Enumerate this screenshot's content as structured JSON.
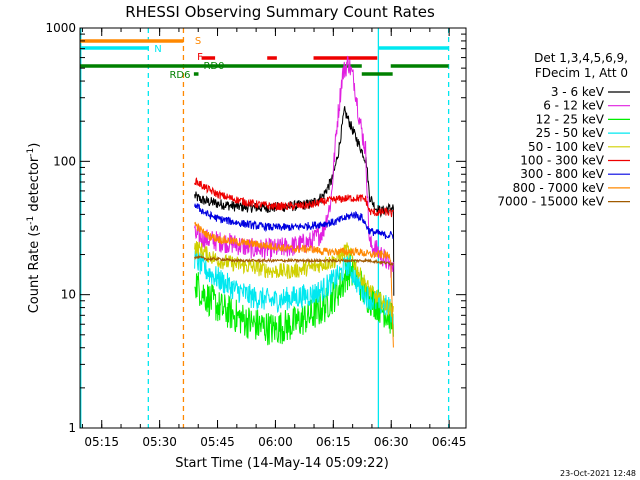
{
  "chart_data": {
    "type": "line",
    "title": "RHESSI Observing Summary Count Rates",
    "xlabel": "Start Time (14-May-14 05:09:22)",
    "ylabel": "Count Rate (s⁻¹ detector⁻¹)",
    "ylabel_base": "Count Rate (s",
    "ylabel_exp1": "-1",
    "ylabel_mid": " detector",
    "ylabel_exp2": "-1",
    "ylabel_end": ")",
    "y_scale": "log",
    "ylim": [
      1,
      1000
    ],
    "xlim_minutes": [
      0,
      100
    ],
    "x_ticks": [
      {
        "label": "05:15",
        "minute": 5.63
      },
      {
        "label": "05:30",
        "minute": 20.63
      },
      {
        "label": "05:45",
        "minute": 35.63
      },
      {
        "label": "06:00",
        "minute": 50.63
      },
      {
        "label": "06:15",
        "minute": 65.63
      },
      {
        "label": "06:30",
        "minute": 80.63
      },
      {
        "label": "06:45",
        "minute": 95.63
      }
    ],
    "y_ticks": [
      {
        "label": "1",
        "value": 1
      },
      {
        "label": "10",
        "value": 10
      },
      {
        "label": "100",
        "value": 100
      },
      {
        "label": "1000",
        "value": 1000
      }
    ],
    "legend": {
      "placement": "right",
      "header1": "Det 1,3,4,5,6,9,",
      "header2": "FDecim 1, Att 0",
      "entries": [
        {
          "name": "3 - 6 keV",
          "color": "#000000"
        },
        {
          "name": "6 - 12 keV",
          "color": "#e020e0"
        },
        {
          "name": "12 - 25 keV",
          "color": "#00ee00"
        },
        {
          "name": "25 - 50 keV",
          "color": "#00e8f0"
        },
        {
          "name": "50 - 100 keV",
          "color": "#d0d000"
        },
        {
          "name": "100 - 300 keV",
          "color": "#ee0000"
        },
        {
          "name": "300 - 800 keV",
          "color": "#0000e0"
        },
        {
          "name": "800 - 7000 keV",
          "color": "#ff8800"
        },
        {
          "name": "7000 - 15000 keV",
          "color": "#a05a00"
        }
      ]
    },
    "series": [
      {
        "name": "3 - 6 keV",
        "color": "#000000",
        "minutes": [
          29.7,
          31,
          33,
          36,
          40,
          45,
          50,
          55,
          60,
          63,
          65.5,
          67,
          68.5,
          70,
          71.5,
          73,
          74.2,
          75,
          76.5,
          78,
          79.5,
          81.2,
          81.3
        ],
        "values": [
          55,
          52,
          50,
          48,
          46,
          45,
          45,
          46,
          48,
          55,
          75,
          120,
          240,
          190,
          150,
          120,
          100,
          55,
          45,
          42,
          44,
          45,
          10
        ]
      },
      {
        "name": "6 - 12 keV",
        "color": "#e020e0",
        "minutes": [
          29.7,
          31,
          33,
          36,
          40,
          45,
          50,
          55,
          60,
          63,
          65,
          66.5,
          68,
          69.5,
          71,
          72.5,
          74,
          75,
          76.5,
          78,
          80,
          81.2
        ],
        "values": [
          28,
          27,
          26,
          25,
          24,
          22,
          22,
          23,
          25,
          30,
          50,
          180,
          450,
          560,
          400,
          200,
          120,
          24,
          22,
          20,
          17,
          15
        ]
      },
      {
        "name": "12 - 25 keV",
        "color": "#00ee00",
        "minutes": [
          29.7,
          31,
          33,
          36,
          40,
          45,
          50,
          55,
          60,
          63,
          66,
          68,
          69,
          70,
          72,
          74,
          76,
          78,
          80,
          81.2
        ],
        "values": [
          13,
          11,
          9.5,
          8,
          7,
          6,
          5.5,
          6,
          7,
          8,
          10,
          12,
          14,
          16,
          13,
          10,
          9,
          8,
          7,
          6
        ]
      },
      {
        "name": "25 - 50 keV",
        "color": "#00e8f0",
        "minutes": [
          29.7,
          31,
          33,
          36,
          40,
          45,
          50,
          55,
          60,
          63,
          66,
          68,
          69,
          70,
          72,
          74,
          76,
          78,
          80,
          81.2
        ],
        "values": [
          19,
          17,
          15,
          13,
          11,
          9.5,
          9,
          9.5,
          10,
          11,
          13,
          15,
          17,
          16,
          12,
          10,
          9,
          8.5,
          8,
          7
        ]
      },
      {
        "name": "50 - 100 keV",
        "color": "#d0d000",
        "minutes": [
          29.7,
          31,
          33,
          36,
          40,
          45,
          50,
          55,
          60,
          63,
          66,
          68,
          69,
          70,
          72,
          74,
          76,
          78,
          80,
          81.2
        ],
        "values": [
          23,
          22,
          20,
          18,
          17,
          16,
          15,
          15,
          16,
          17,
          18,
          20,
          22,
          20,
          15,
          12,
          10,
          9,
          8,
          7.5
        ]
      },
      {
        "name": "100 - 300 keV",
        "color": "#ee0000",
        "minutes": [
          29.7,
          31,
          33,
          36,
          40,
          45,
          50,
          55,
          60,
          63,
          67,
          70,
          72.5,
          74,
          75,
          77,
          79,
          81.2
        ],
        "values": [
          72,
          68,
          62,
          56,
          52,
          48,
          46,
          46,
          47,
          50,
          52,
          53,
          53,
          52,
          42,
          41,
          42,
          40
        ]
      },
      {
        "name": "300 - 800 keV",
        "color": "#0000e0",
        "minutes": [
          29.7,
          31,
          33,
          36,
          40,
          45,
          50,
          55,
          60,
          63,
          66,
          69,
          71,
          73,
          75,
          77,
          79,
          81.2
        ],
        "values": [
          48,
          44,
          40,
          37,
          35,
          33,
          32,
          32,
          33,
          34,
          35,
          38,
          40,
          38,
          30,
          29,
          28,
          28
        ]
      },
      {
        "name": "800 - 7000 keV",
        "color": "#ff8800",
        "minutes": [
          29.7,
          31,
          33,
          36,
          40,
          45,
          50,
          55,
          60,
          63,
          66,
          69,
          72,
          75,
          77,
          79,
          80.5,
          81.2
        ],
        "values": [
          34,
          31,
          28,
          26,
          25,
          24,
          23,
          22,
          22,
          21,
          21,
          21,
          21,
          20,
          20,
          20,
          19,
          4
        ]
      },
      {
        "name": "7000 - 15000 keV",
        "color": "#a05a00",
        "minutes": [
          29.7,
          31,
          33,
          36,
          40,
          45,
          50,
          55,
          60,
          63,
          66,
          69,
          72,
          75,
          78,
          81.2
        ],
        "values": [
          19,
          19,
          18.5,
          18.5,
          18,
          18,
          18,
          18,
          18,
          18,
          18,
          18,
          18,
          18,
          17.5,
          17
        ]
      }
    ],
    "vertical_markers": [
      {
        "minute": 0.2,
        "color": "#00e8f0",
        "style": "solid"
      },
      {
        "minute": 17.7,
        "color": "#00e8f0",
        "style": "dashed"
      },
      {
        "minute": 26.8,
        "color": "#ff8800",
        "style": "dashed"
      },
      {
        "minute": 77.3,
        "color": "#00e8f0",
        "style": "solid"
      },
      {
        "minute": 95.5,
        "color": "#00e8f0",
        "style": "dashed"
      }
    ],
    "flag_bars": [
      {
        "label": "S",
        "color": "#ff8800",
        "row": "s",
        "segments": [
          [
            0,
            26.8
          ]
        ]
      },
      {
        "label": "N",
        "color": "#00e8f0",
        "row": "n",
        "segments": [
          [
            0,
            17.7
          ],
          [
            77.3,
            95.5
          ]
        ]
      },
      {
        "label": "F",
        "color": "#ee0000",
        "row": "f",
        "segments": [
          [
            31.5,
            35
          ],
          [
            48.5,
            51
          ],
          [
            60.5,
            77
          ]
        ]
      },
      {
        "label": "RD0",
        "color": "#008000",
        "row": "rd0",
        "segments": [
          [
            0,
            73
          ],
          [
            80.5,
            95.5
          ]
        ]
      },
      {
        "label": "RD6",
        "color": "#008000",
        "row": "rd6",
        "segments": [
          [
            29.5,
            30.7
          ],
          [
            73,
            81
          ]
        ]
      }
    ],
    "footer_date": "23-Oct-2021 12:48"
  }
}
